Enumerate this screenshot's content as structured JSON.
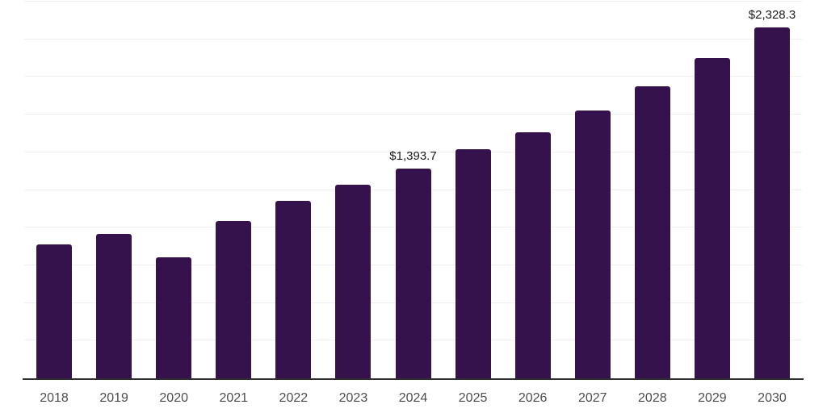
{
  "chart_data": {
    "type": "bar",
    "title": "",
    "xlabel": "",
    "ylabel": "",
    "categories": [
      "2018",
      "2019",
      "2020",
      "2021",
      "2022",
      "2023",
      "2024",
      "2025",
      "2026",
      "2027",
      "2028",
      "2029",
      "2030"
    ],
    "values": [
      888,
      961,
      801,
      1046,
      1176,
      1283,
      1393.7,
      1518,
      1634,
      1780,
      1940,
      2123,
      2328.3
    ],
    "data_labels": {
      "2024": "$1,393.7",
      "2030": "$2,328.3"
    },
    "ylim": [
      0,
      2500
    ],
    "grid_step": 250,
    "grid": true,
    "legend": false,
    "colors": {
      "bar": "#36124d",
      "axis": "#2e2e2e",
      "gridline": "#efefef",
      "data_label": "#1a1a1a",
      "tick_label": "#4d4d4d",
      "background": "#ffffff"
    }
  }
}
